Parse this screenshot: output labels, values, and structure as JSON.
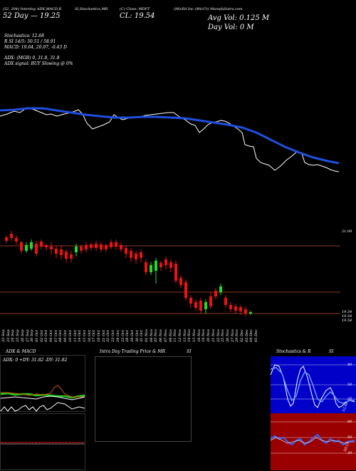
{
  "header": {
    "line1": "(52, 204) Interday ADX,MACD,R",
    "line2": "52 Day — 19.25",
    "stoch_title": "SI,Stochastics,MR",
    "close_title": "(C) Close: MDFT",
    "close_value": "CL: 19.54",
    "company": "(MicEd Inc (MicI?)) MunafaSutra.com",
    "avg_vol": "Avg Vol: 0.125 M",
    "day_vol": "Day Vol: 0   M"
  },
  "indicators": {
    "stochastics": "Stochastics: 12.68",
    "rsi": "R                         SI 14/5: 50.51 / 58.91",
    "macd": "MACD: 19.64, 20.07, -0.43 D",
    "adx": "ADX:                                   (MGR) 0, 31.8, 31.8",
    "adx_signal": "ADX  signal:                                BUY Slowing @ 0%"
  },
  "price_axis": {
    "top": "21.09",
    "bottom_a": "19.54",
    "bottom_b": "19.54",
    "bottom_c": "19.54"
  },
  "dates": [
    "22 Sep",
    "23 Sep",
    "24 Sep",
    "25 Sep",
    "26 Sep",
    "27 Sep",
    "30 Sep",
    "01 Oct",
    "02 Oct",
    "03 Oct",
    "04 Oct",
    "07 Oct",
    "08 Oct",
    "09 Oct",
    "10 Oct",
    "11 Oct",
    "14 Oct",
    "15 Oct",
    "16 Oct",
    "17 Oct",
    "18 Oct",
    "21 Oct",
    "22 Oct",
    "23 Oct",
    "24 Oct",
    "25 Oct",
    "28 Oct",
    "29 Oct",
    "30 Oct",
    "31 Oct",
    "01 Nov",
    "04 Nov",
    "05 Nov",
    "06 Nov",
    "07 Nov",
    "08 Nov",
    "11 Nov",
    "12 Nov",
    "13 Nov",
    "14 Nov",
    "15 Nov",
    "18 Nov",
    "19 Nov",
    "20 Nov",
    "21 Nov",
    "22 Nov",
    "25 Nov",
    "26 Nov",
    "27 Nov",
    "29 Nov",
    "02 Dec",
    "03 Dec",
    "04 Dec",
    "05 Dec"
  ],
  "panels": {
    "adx_title": "ADX  & MACD",
    "adx_values": "ADX: 0  +DY: 31.82  -DY: 31.82",
    "intraday_title": "Intra  Day Trading Price  & MR",
    "intraday_si": "SI",
    "stoch_title": "Stochastics & R",
    "stoch_si": "SI",
    "stoch_axis": [
      "80",
      "50",
      "20"
    ],
    "stoch_last": "12.68",
    "rsi_axis": [
      "80",
      "50",
      "20"
    ],
    "rsi_last": "50.51"
  },
  "colors": {
    "ma_line": "#1f4fe0",
    "up_candle": "#22dd22",
    "down_candle": "#ee1111",
    "grid_line": "#8b3a1a",
    "rsi_bg": "#9b0000",
    "stoch_bg": "#0000c8"
  }
}
